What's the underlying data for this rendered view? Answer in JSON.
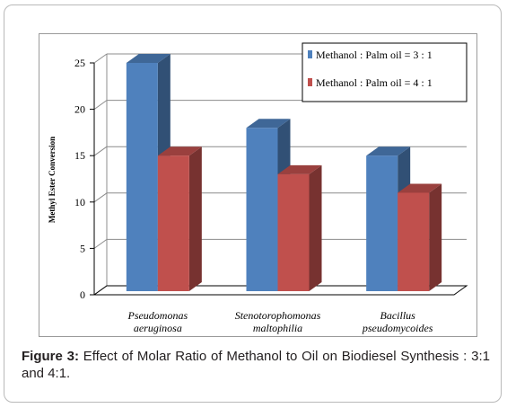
{
  "chart_data": {
    "type": "bar",
    "categories": [
      [
        "Pseudomonas",
        "aeruginosa"
      ],
      [
        "Stenotorophomonas",
        "maltophilia"
      ],
      [
        "Bacillus",
        "pseudomycoides"
      ]
    ],
    "series": [
      {
        "name": "Methanol : Palm oil = 3 : 1",
        "values": [
          25,
          18,
          15
        ],
        "color": "#4f81bd"
      },
      {
        "name": "Methanol : Palm oil = 4 : 1",
        "values": [
          15,
          13,
          11
        ],
        "color": "#c0504d"
      }
    ],
    "ylabel": "Methyl Ester Conversion",
    "ylim": [
      0,
      25
    ],
    "yticks": [
      "0",
      "5",
      "10",
      "15",
      "20",
      "25"
    ],
    "grid": true,
    "legend_position": "top-right"
  },
  "caption": {
    "label": "Figure 3:",
    "text": " Effect of Molar Ratio of Methanol to Oil on Biodiesel Synthesis : 3:1 and 4:1."
  }
}
